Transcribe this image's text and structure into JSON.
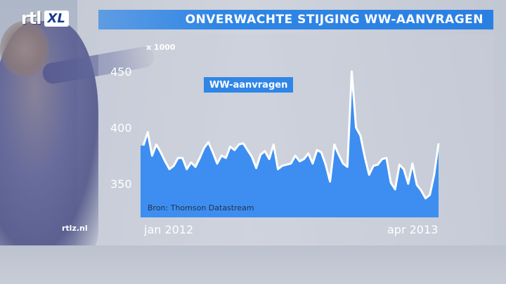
{
  "brand": {
    "logo_main": "rtl",
    "logo_sub": "XL",
    "watermark": "rtlz.nl"
  },
  "title": "ONVERWACHTE STIJGING WW-AANVRAGEN",
  "source": "Bron: Thomson Datastream",
  "colors": {
    "accent": "#2f86e6",
    "area_fill": "#3d8ef0",
    "line": "#ffffff"
  },
  "chart_data": {
    "type": "area",
    "title": "ONVERWACHTE STIJGING WW-AANVRAGEN",
    "unit_label": "x 1000",
    "series": [
      {
        "name": "WW-aanvragen",
        "values": [
          384,
          396,
          375,
          385,
          378,
          370,
          363,
          366,
          373,
          373,
          363,
          369,
          365,
          373,
          382,
          387,
          378,
          368,
          375,
          373,
          383,
          380,
          385,
          386,
          380,
          374,
          364,
          376,
          379,
          372,
          385,
          363,
          366,
          367,
          368,
          375,
          370,
          372,
          377,
          368,
          380,
          378,
          367,
          352,
          385,
          376,
          368,
          365,
          450,
          400,
          393,
          374,
          358,
          366,
          367,
          372,
          373,
          351,
          345,
          367,
          363,
          350,
          368,
          349,
          344,
          337,
          340,
          358,
          386
        ]
      }
    ],
    "x_start_label": "jan 2012",
    "x_end_label": "apr 2013",
    "y_ticks": [
      350,
      400,
      450
    ],
    "ylim": [
      325,
      455
    ],
    "grid": false,
    "legend_placement": "top-left"
  }
}
